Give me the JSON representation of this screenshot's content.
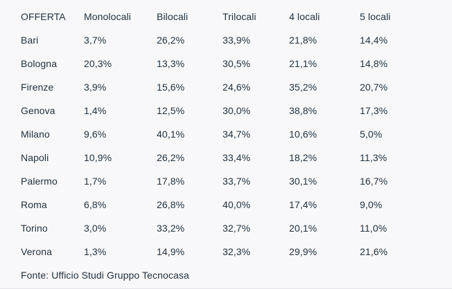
{
  "colors": {
    "text": "#22313f",
    "background": "#f8f8fa",
    "bottom_divider": "#e4e4e8"
  },
  "table": {
    "columns": [
      "OFFERTA",
      "Monolocali",
      "Bilocali",
      "Trilocali",
      "4 locali",
      "5 locali"
    ],
    "rows": [
      {
        "city": "Bari",
        "values": [
          "3,7%",
          "26,2%",
          "33,9%",
          "21,8%",
          "14,4%"
        ]
      },
      {
        "city": "Bologna",
        "values": [
          "20,3%",
          "13,3%",
          "30,5%",
          "21,1%",
          "14,8%"
        ]
      },
      {
        "city": "Firenze",
        "values": [
          "3,9%",
          "15,6%",
          "24,6%",
          "35,2%",
          "20,7%"
        ]
      },
      {
        "city": "Genova",
        "values": [
          "1,4%",
          "12,5%",
          "30,0%",
          "38,8%",
          "17,3%"
        ]
      },
      {
        "city": "Milano",
        "values": [
          "9,6%",
          "40,1%",
          "34,7%",
          "10,6%",
          "5,0%"
        ]
      },
      {
        "city": "Napoli",
        "values": [
          "10,9%",
          "26,2%",
          "33,4%",
          "18,2%",
          "11,3%"
        ]
      },
      {
        "city": "Palermo",
        "values": [
          "1,7%",
          "17,8%",
          "33,7%",
          "30,1%",
          "16,7%"
        ]
      },
      {
        "city": "Roma",
        "values": [
          "6,8%",
          "26,8%",
          "40,0%",
          "17,4%",
          "9,0%"
        ]
      },
      {
        "city": "Torino",
        "values": [
          "3,0%",
          "33,2%",
          "32,7%",
          "20,1%",
          "11,0%"
        ]
      },
      {
        "city": "Verona",
        "values": [
          "1,3%",
          "14,9%",
          "32,3%",
          "29,9%",
          "21,6%"
        ]
      }
    ]
  },
  "source": "Fonte: Ufficio Studi Gruppo Tecnocasa",
  "chart_data": {
    "type": "table",
    "title": "OFFERTA",
    "columns": [
      "OFFERTA",
      "Monolocali",
      "Bilocali",
      "Trilocali",
      "4 locali",
      "5 locali"
    ],
    "unit": "percent",
    "decimal_separator": ",",
    "rows": [
      [
        "Bari",
        3.7,
        26.2,
        33.9,
        21.8,
        14.4
      ],
      [
        "Bologna",
        20.3,
        13.3,
        30.5,
        21.1,
        14.8
      ],
      [
        "Firenze",
        3.9,
        15.6,
        24.6,
        35.2,
        20.7
      ],
      [
        "Genova",
        1.4,
        12.5,
        30.0,
        38.8,
        17.3
      ],
      [
        "Milano",
        9.6,
        40.1,
        34.7,
        10.6,
        5.0
      ],
      [
        "Napoli",
        10.9,
        26.2,
        33.4,
        18.2,
        11.3
      ],
      [
        "Palermo",
        1.7,
        17.8,
        33.7,
        30.1,
        16.7
      ],
      [
        "Roma",
        6.8,
        26.8,
        40.0,
        17.4,
        9.0
      ],
      [
        "Torino",
        3.0,
        33.2,
        32.7,
        20.1,
        11.0
      ],
      [
        "Verona",
        1.3,
        14.9,
        32.3,
        29.9,
        21.6
      ]
    ],
    "annotations": [
      "Fonte: Ufficio Studi Gruppo Tecnocasa"
    ]
  }
}
